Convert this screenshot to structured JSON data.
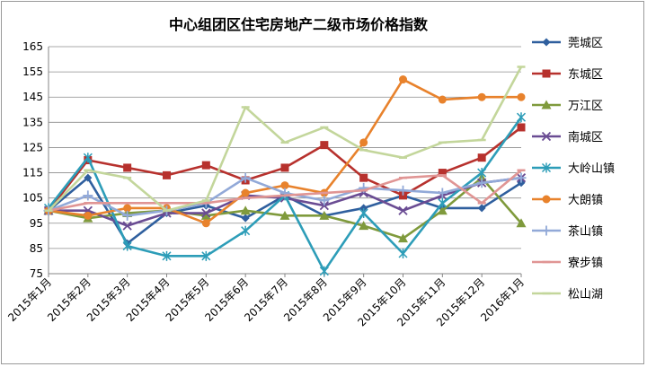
{
  "chart_data": {
    "type": "line",
    "title": "中心组团区住宅房地产二级市场价格指数",
    "categories": [
      "2015年1月",
      "2015年2月",
      "2015年3月",
      "2015年4月",
      "2015年5月",
      "2015年6月",
      "2015年7月",
      "2015年8月",
      "2015年9月",
      "2015年10月",
      "2015年11月",
      "2015年12月",
      "2016年1月"
    ],
    "ylim": [
      75,
      165
    ],
    "yticks": [
      75,
      85,
      95,
      105,
      115,
      125,
      135,
      145,
      155,
      165
    ],
    "grid": true,
    "legend_position": "right",
    "series": [
      {
        "name": "莞城区",
        "color": "#2f5f9e",
        "marker": "diamond",
        "values": [
          100,
          113,
          87,
          99,
          102,
          97,
          106,
          98,
          101,
          106,
          101,
          101,
          111
        ]
      },
      {
        "name": "东城区",
        "color": "#b7312d",
        "marker": "square",
        "values": [
          100,
          120,
          117,
          114,
          118,
          112,
          117,
          126,
          113,
          106,
          115,
          121,
          133
        ]
      },
      {
        "name": "万江区",
        "color": "#7f9a3c",
        "marker": "triangle",
        "values": [
          100,
          97,
          99,
          100,
          98,
          100,
          98,
          98,
          94,
          89,
          100,
          113,
          95
        ]
      },
      {
        "name": "南城区",
        "color": "#6a4c93",
        "marker": "x",
        "values": [
          100,
          100,
          94,
          99,
          99,
          106,
          105,
          102,
          107,
          100,
          106,
          111,
          113
        ]
      },
      {
        "name": "大岭山镇",
        "color": "#2d9db8",
        "marker": "star",
        "values": [
          101,
          121,
          86,
          82,
          82,
          92,
          106,
          76,
          99,
          83,
          103,
          115,
          137
        ]
      },
      {
        "name": "大朗镇",
        "color": "#e8822c",
        "marker": "circle",
        "values": [
          100,
          98,
          101,
          101,
          95,
          107,
          110,
          107,
          127,
          152,
          144,
          145,
          145
        ]
      },
      {
        "name": "茶山镇",
        "color": "#92a9d8",
        "marker": "plus",
        "values": [
          100,
          106,
          98,
          100,
          103,
          113,
          107,
          104,
          109,
          108,
          107,
          111,
          113
        ]
      },
      {
        "name": "寮步镇",
        "color": "#e09594",
        "marker": "dash",
        "values": [
          100,
          103,
          103,
          103,
          103,
          105,
          106,
          107,
          108,
          113,
          114,
          103,
          116
        ]
      },
      {
        "name": "松山湖",
        "color": "#c3d69b",
        "marker": "dash",
        "values": [
          100,
          116,
          113,
          100,
          104,
          141,
          127,
          133,
          124,
          121,
          127,
          128,
          157
        ]
      }
    ]
  }
}
